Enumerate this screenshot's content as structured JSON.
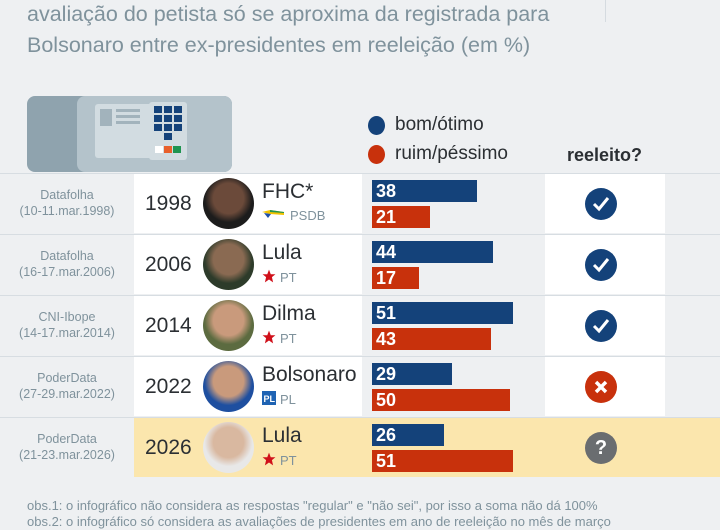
{
  "subtitle_lines": [
    "avaliação do petista só se aproxima da registrada para",
    "Bolsonaro entre ex-presidentes em reeleição (em %)"
  ],
  "legend": {
    "good": "bom/ótimo",
    "bad": "ruim/péssimo",
    "reelected_header": "reeleito?"
  },
  "colors": {
    "good": "#14427a",
    "bad": "#c8310c",
    "highlight": "#fbe6ad",
    "no": "#c8310c",
    "unknown": "#6a6d70"
  },
  "chart_data": {
    "type": "bar",
    "categories": [
      "1998",
      "2006",
      "2014",
      "2022",
      "2026"
    ],
    "series": [
      {
        "name": "bom/ótimo",
        "values": [
          38,
          44,
          51,
          29,
          26
        ]
      },
      {
        "name": "ruim/péssimo",
        "values": [
          21,
          17,
          43,
          50,
          51
        ]
      }
    ],
    "xlim": [
      0,
      60
    ]
  },
  "rows": [
    {
      "source": "Datafolha",
      "dates": "(10-11.mar.1998)",
      "year": "1998",
      "name": "FHC*",
      "party": "PSDB",
      "party_icon": "psdb-toucan-icon",
      "good": "38",
      "bad": "21",
      "reelected": "yes"
    },
    {
      "source": "Datafolha",
      "dates": "(16-17.mar.2006)",
      "year": "2006",
      "name": "Lula",
      "party": "PT",
      "party_icon": "pt-star-icon",
      "good": "44",
      "bad": "17",
      "reelected": "yes"
    },
    {
      "source": "CNI-Ibope",
      "dates": "(14-17.mar.2014)",
      "year": "2014",
      "name": "Dilma",
      "party": "PT",
      "party_icon": "pt-star-icon",
      "good": "51",
      "bad": "43",
      "reelected": "yes"
    },
    {
      "source": "PoderData",
      "dates": "(27-29.mar.2022)",
      "year": "2022",
      "name": "Bolsonaro",
      "party": "PL",
      "party_icon": "pl-logo-icon",
      "good": "29",
      "bad": "50",
      "reelected": "no"
    },
    {
      "source": "PoderData",
      "dates": "(21-23.mar.2026)",
      "year": "2026",
      "name": "Lula",
      "party": "PT",
      "party_icon": "pt-star-icon",
      "good": "26",
      "bad": "51",
      "reelected": "unknown"
    }
  ],
  "notes": [
    "obs.1: o infográfico não considera as respostas \"regular\" e \"não sei\", por isso a soma não dá 100%",
    "obs.2: o infográfico só considera as avaliações de presidentes em ano de reeleição no mês de março"
  ]
}
